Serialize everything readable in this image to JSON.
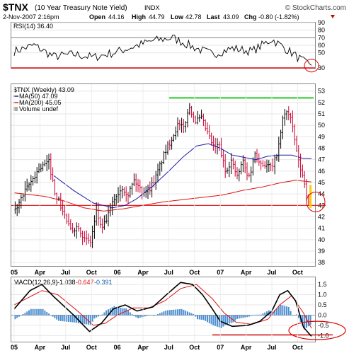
{
  "header": {
    "symbol": "$TNX",
    "description": "(10 Year Treasury Note Yield)",
    "exchange": "INDX",
    "copyright": "© StockCharts.com",
    "datetime": "2-Nov-2007 2:16pm",
    "open_label": "Open",
    "open": "44.16",
    "high_label": "High",
    "high": "44.79",
    "low_label": "Low",
    "low": "42.78",
    "last_label": "Last",
    "last": "43.09",
    "chg_label": "Chg",
    "chg": "-0.80 (-1.82%)",
    "chg_color": "#cc0000"
  },
  "colors": {
    "up_bar": "#000000",
    "down_bar": "#cc0033",
    "ma50": "#1a1aa0",
    "ma200": "#dd1111",
    "resistance": "#22cc22",
    "support": "#dd1111",
    "circle": "#dd0000",
    "histogram": "#4d8fd0",
    "last_bar": "#ffcc00"
  },
  "chart_data": [
    {
      "type": "line",
      "panel": "RSI",
      "legend": "RSI(14) 36.40",
      "ylim": [
        30,
        90
      ],
      "yticks": [
        30,
        50,
        60,
        70,
        80,
        90
      ],
      "reference_lines": [
        70,
        30
      ],
      "x_weeks": [
        0,
        10,
        20,
        30,
        40,
        50,
        60,
        70,
        80,
        90,
        100,
        110,
        120,
        130,
        140,
        147
      ],
      "values": [
        52,
        60,
        45,
        48,
        44,
        50,
        58,
        66,
        70,
        58,
        48,
        56,
        52,
        68,
        50,
        36.4
      ]
    },
    {
      "type": "line",
      "panel": "Price",
      "legend_main": "$TNX (Weekly) 43.09",
      "legend_ma50": "MA(50) 47.09",
      "legend_ma200": "MA(200) 45.05",
      "legend_volume": "Volume undef",
      "ylim": [
        37.7,
        53.6
      ],
      "yticks": [
        38,
        39,
        40,
        41,
        42,
        43,
        44,
        45,
        46,
        47,
        48,
        49,
        50,
        51,
        52,
        53
      ],
      "weeks_total": 150,
      "price_anchors": [
        [
          0,
          42.6
        ],
        [
          6,
          44.5
        ],
        [
          12,
          46.2
        ],
        [
          17,
          46.8
        ],
        [
          20,
          44.2
        ],
        [
          24,
          42.5
        ],
        [
          28,
          40.8
        ],
        [
          32,
          41.2
        ],
        [
          35,
          40.0
        ],
        [
          38,
          39.8
        ],
        [
          41,
          42.4
        ],
        [
          44,
          40.9
        ],
        [
          47,
          42.2
        ],
        [
          50,
          43.6
        ],
        [
          54,
          44.6
        ],
        [
          57,
          44.0
        ],
        [
          60,
          45.2
        ],
        [
          64,
          44.2
        ],
        [
          68,
          44.5
        ],
        [
          71,
          45.5
        ],
        [
          75,
          47.4
        ],
        [
          78,
          48.5
        ],
        [
          82,
          50.0
        ],
        [
          85,
          49.8
        ],
        [
          88,
          51.6
        ],
        [
          91,
          50.4
        ],
        [
          94,
          50.6
        ],
        [
          98,
          48.9
        ],
        [
          100,
          48.1
        ],
        [
          103,
          48.2
        ],
        [
          106,
          46.0
        ],
        [
          109,
          46.9
        ],
        [
          112,
          45.5
        ],
        [
          115,
          46.9
        ],
        [
          117,
          45.6
        ],
        [
          119,
          46.0
        ],
        [
          121,
          47.6
        ],
        [
          124,
          46.7
        ],
        [
          127,
          46.5
        ],
        [
          130,
          46.3
        ],
        [
          133,
          48.2
        ],
        [
          135,
          50.5
        ],
        [
          137,
          51.3
        ],
        [
          139,
          50.6
        ],
        [
          141,
          48.7
        ],
        [
          143,
          46.8
        ],
        [
          145,
          45.6
        ],
        [
          146,
          45.0
        ],
        [
          148,
          43.1
        ],
        [
          150,
          43.09
        ]
      ],
      "ma50_anchors": [
        [
          20,
          45.6
        ],
        [
          30,
          44.3
        ],
        [
          40,
          43.2
        ],
        [
          50,
          42.8
        ],
        [
          56,
          43.0
        ],
        [
          62,
          43.6
        ],
        [
          70,
          44.7
        ],
        [
          78,
          46.0
        ],
        [
          85,
          47.2
        ],
        [
          92,
          48.2
        ],
        [
          98,
          48.4
        ],
        [
          104,
          48.0
        ],
        [
          110,
          47.4
        ],
        [
          116,
          47.2
        ],
        [
          122,
          47.0
        ],
        [
          128,
          47.3
        ],
        [
          134,
          47.4
        ],
        [
          140,
          47.4
        ],
        [
          146,
          47.1
        ],
        [
          150,
          47.09
        ]
      ],
      "ma200_anchors": [
        [
          0,
          44.1
        ],
        [
          15,
          43.8
        ],
        [
          25,
          43.4
        ],
        [
          35,
          42.8
        ],
        [
          45,
          42.5
        ],
        [
          55,
          42.7
        ],
        [
          65,
          43.0
        ],
        [
          75,
          43.3
        ],
        [
          85,
          43.5
        ],
        [
          95,
          43.7
        ],
        [
          105,
          43.9
        ],
        [
          115,
          44.3
        ],
        [
          125,
          44.6
        ],
        [
          135,
          45.0
        ],
        [
          142,
          45.2
        ],
        [
          150,
          45.05
        ]
      ],
      "resistance_level": 52.4,
      "support_level": 43.0
    },
    {
      "type": "bar",
      "panel": "MACD",
      "legend_label": "MACD(12,26,9)",
      "legend_macd": "-1.038",
      "legend_signal": "-0.647",
      "legend_hist": "-0.391",
      "ylim": [
        -1.3,
        1.85
      ],
      "yticks": [
        1.5,
        1.0,
        0.5,
        0.0,
        -0.5,
        -1.0
      ],
      "ytick_labels": [
        "1.5",
        "1.0",
        "0.5",
        "0.0",
        "-0.5",
        "-1.0"
      ],
      "macd_anchors": [
        [
          0,
          0.3
        ],
        [
          8,
          1.2
        ],
        [
          14,
          1.5
        ],
        [
          20,
          0.9
        ],
        [
          30,
          0.0
        ],
        [
          38,
          -0.8
        ],
        [
          44,
          -0.4
        ],
        [
          50,
          0.3
        ],
        [
          56,
          0.5
        ],
        [
          62,
          0.2
        ],
        [
          70,
          0.4
        ],
        [
          78,
          1.1
        ],
        [
          84,
          1.6
        ],
        [
          90,
          1.5
        ],
        [
          95,
          1.0
        ],
        [
          100,
          0.3
        ],
        [
          104,
          -0.3
        ],
        [
          110,
          -0.55
        ],
        [
          118,
          -0.5
        ],
        [
          124,
          -0.3
        ],
        [
          130,
          0.2
        ],
        [
          134,
          1.0
        ],
        [
          138,
          1.2
        ],
        [
          142,
          0.7
        ],
        [
          146,
          -0.6
        ],
        [
          150,
          -1.038
        ]
      ],
      "signal_anchors": [
        [
          0,
          0.5
        ],
        [
          8,
          0.9
        ],
        [
          14,
          1.2
        ],
        [
          22,
          1.0
        ],
        [
          32,
          0.2
        ],
        [
          40,
          -0.5
        ],
        [
          46,
          -0.4
        ],
        [
          52,
          0.0
        ],
        [
          60,
          0.35
        ],
        [
          68,
          0.35
        ],
        [
          76,
          0.7
        ],
        [
          84,
          1.3
        ],
        [
          92,
          1.5
        ],
        [
          100,
          0.8
        ],
        [
          106,
          0.1
        ],
        [
          112,
          -0.35
        ],
        [
          120,
          -0.45
        ],
        [
          128,
          -0.2
        ],
        [
          134,
          0.5
        ],
        [
          140,
          0.95
        ],
        [
          146,
          0.1
        ],
        [
          150,
          -0.647
        ]
      ],
      "support_level": -1.0
    }
  ],
  "x_axis": {
    "labels": [
      "05",
      "Apr",
      "Jul",
      "Oct",
      "06",
      "Apr",
      "Jul",
      "Oct",
      "07",
      "Apr",
      "Jul",
      "Oct"
    ],
    "weeks": [
      0,
      13,
      26,
      39,
      52,
      65,
      78,
      91,
      104,
      117,
      130,
      143
    ]
  }
}
